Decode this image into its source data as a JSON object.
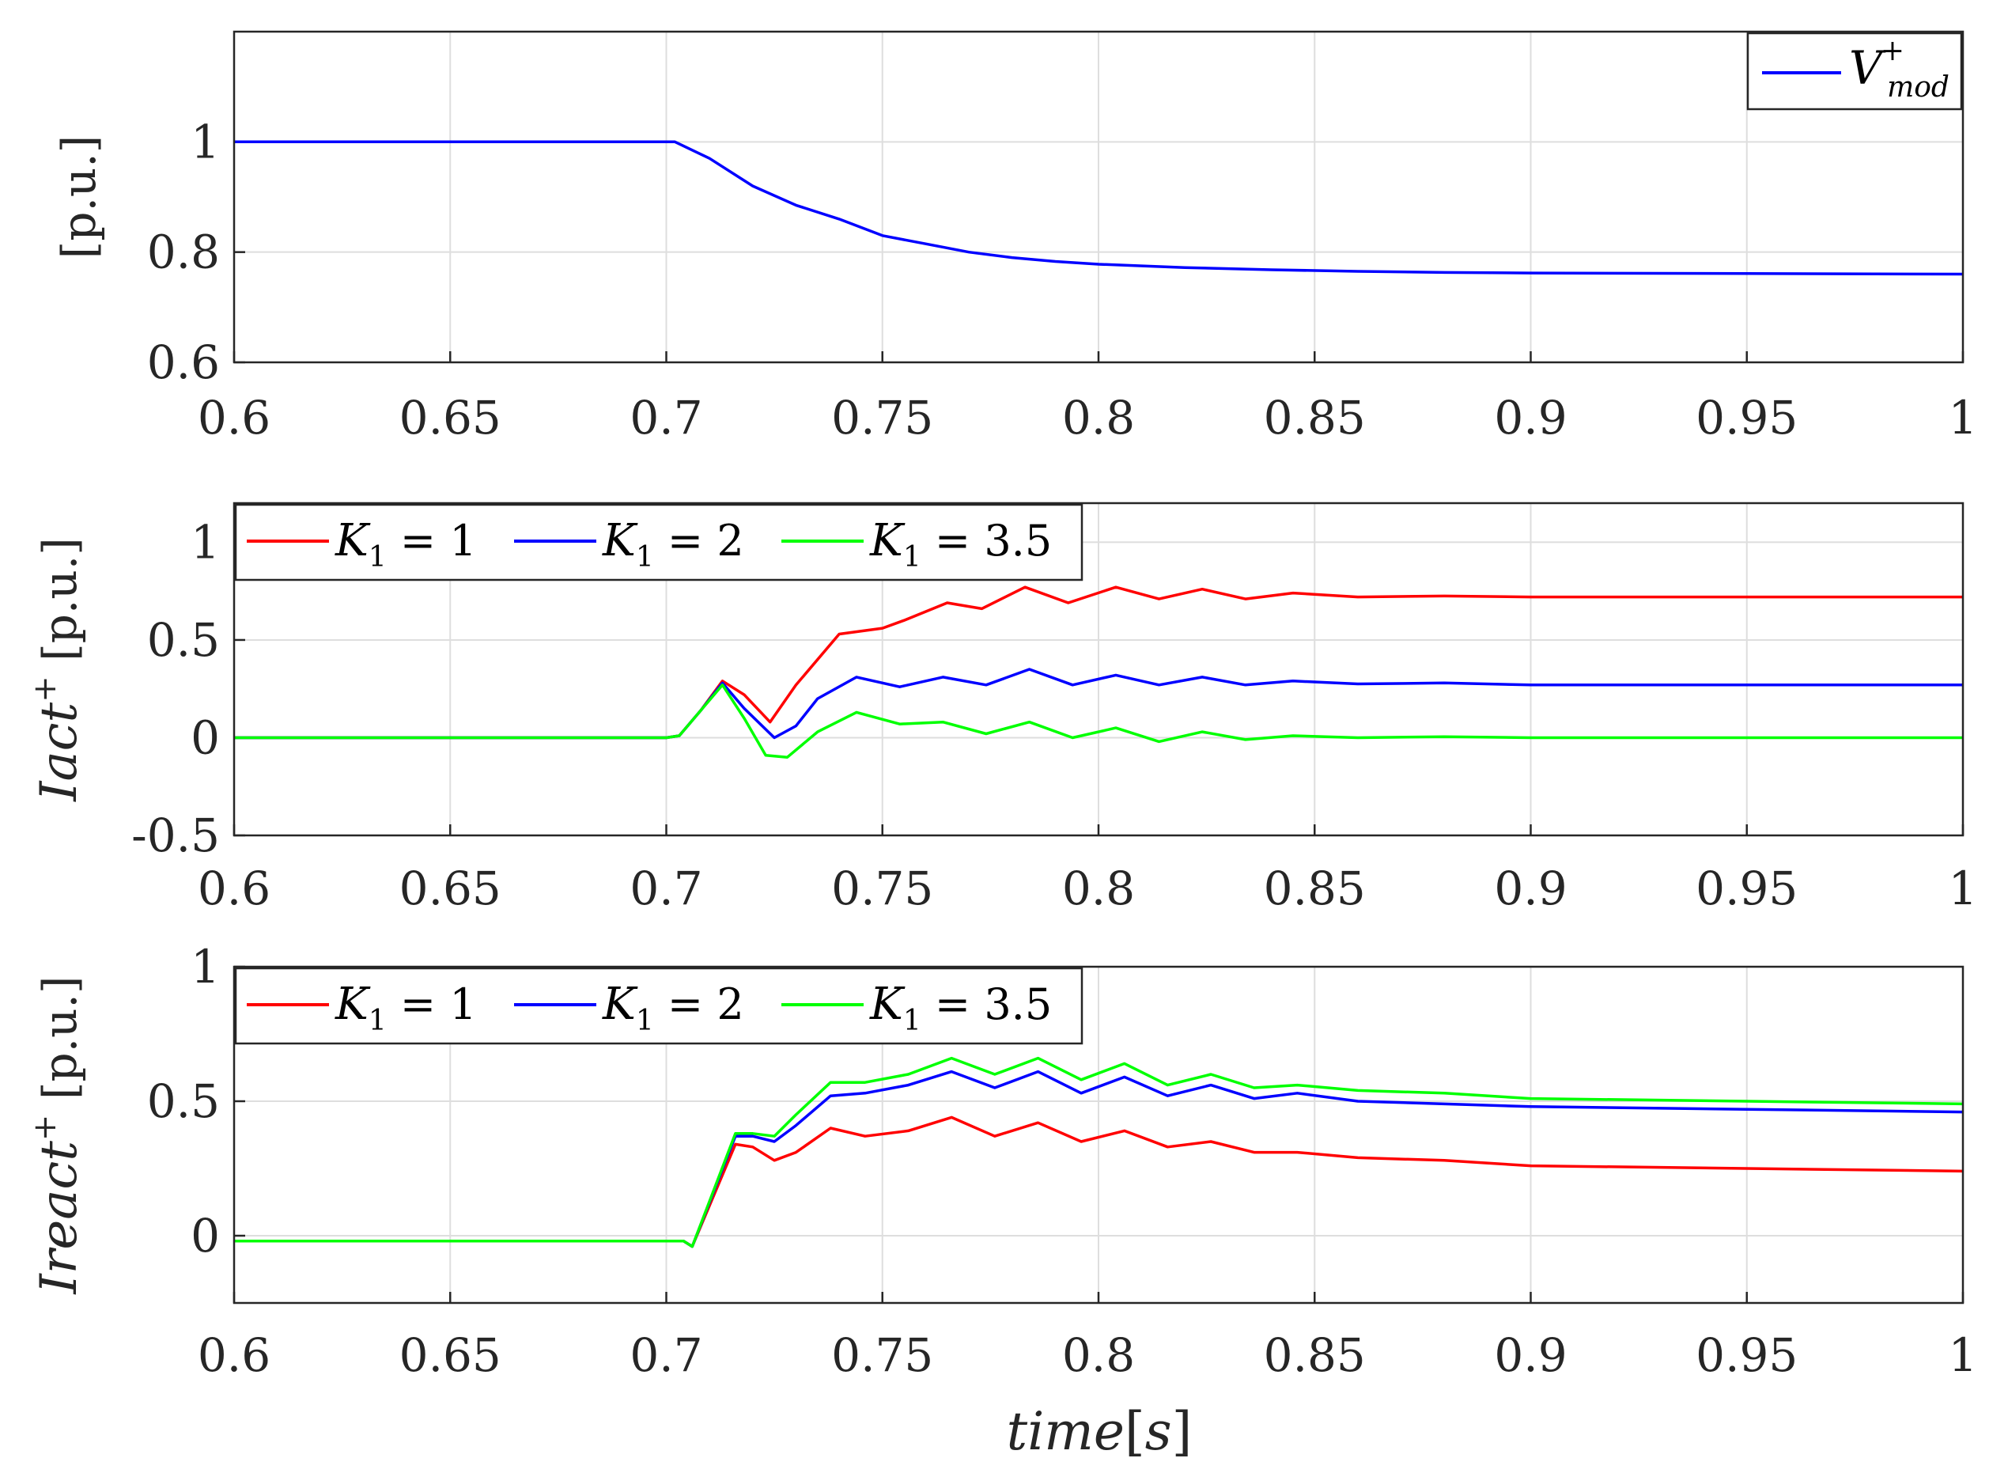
{
  "chart_data": [
    {
      "type": "line",
      "title": "",
      "ylabel": "[p.u.]",
      "xlim": [
        0.6,
        1.0
      ],
      "ylim": [
        0.6,
        1.2
      ],
      "xticks": [
        "0.6",
        "0.65",
        "0.7",
        "0.75",
        "0.8",
        "0.85",
        "0.9",
        "0.95",
        "1"
      ],
      "yticks": [
        [
          "0.6",
          0.6
        ],
        [
          "0.8",
          0.8
        ],
        [
          "1",
          1.0
        ]
      ],
      "grid": true,
      "legend_location": "top-right",
      "legend_text": {
        "symbol": "V",
        "sup": "+",
        "sub": "mod"
      },
      "series": [
        {
          "name": "V+mod",
          "color": "#0000ff",
          "x": [
            0.6,
            0.65,
            0.7,
            0.702,
            0.71,
            0.72,
            0.73,
            0.74,
            0.75,
            0.76,
            0.77,
            0.78,
            0.79,
            0.8,
            0.82,
            0.84,
            0.86,
            0.88,
            0.9,
            0.95,
            1.0
          ],
          "values": [
            1.0,
            1.0,
            1.0,
            1.0,
            0.97,
            0.92,
            0.885,
            0.86,
            0.83,
            0.815,
            0.8,
            0.79,
            0.783,
            0.778,
            0.772,
            0.768,
            0.765,
            0.763,
            0.762,
            0.761,
            0.76
          ]
        }
      ]
    },
    {
      "type": "line",
      "title": "",
      "ylabel": "Iact+ [p.u.]",
      "ylabel_parts": {
        "italic": "Iact",
        "sup": "+",
        "unit": "[p.u.]"
      },
      "xlim": [
        0.6,
        1.0
      ],
      "ylim": [
        -0.5,
        1.2
      ],
      "xticks": [
        "0.6",
        "0.65",
        "0.7",
        "0.75",
        "0.8",
        "0.85",
        "0.9",
        "0.95",
        "1"
      ],
      "yticks": [
        [
          "-0.5",
          -0.5
        ],
        [
          "0",
          0
        ],
        [
          "0.5",
          0.5
        ],
        [
          "1",
          1.0
        ]
      ],
      "grid": true,
      "legend_location": "top-left",
      "series": [
        {
          "name": "K1 = 1",
          "label_sym": "K",
          "label_sub": "1",
          "label_val": " = 1",
          "color": "#ff0000",
          "x": [
            0.6,
            0.65,
            0.7,
            0.703,
            0.708,
            0.713,
            0.718,
            0.724,
            0.73,
            0.74,
            0.75,
            0.755,
            0.765,
            0.773,
            0.783,
            0.793,
            0.804,
            0.814,
            0.824,
            0.834,
            0.845,
            0.86,
            0.88,
            0.9,
            0.95,
            1.0
          ],
          "values": [
            0,
            0,
            0,
            0.01,
            0.14,
            0.29,
            0.22,
            0.08,
            0.27,
            0.53,
            0.56,
            0.6,
            0.69,
            0.66,
            0.77,
            0.69,
            0.77,
            0.71,
            0.76,
            0.71,
            0.74,
            0.72,
            0.725,
            0.72,
            0.72,
            0.72
          ]
        },
        {
          "name": "K1 = 2",
          "label_sym": "K",
          "label_sub": "1",
          "label_val": " = 2",
          "color": "#0000ff",
          "x": [
            0.6,
            0.65,
            0.7,
            0.703,
            0.708,
            0.713,
            0.718,
            0.725,
            0.73,
            0.735,
            0.744,
            0.754,
            0.764,
            0.774,
            0.784,
            0.794,
            0.804,
            0.814,
            0.824,
            0.834,
            0.845,
            0.86,
            0.88,
            0.9,
            0.95,
            1.0
          ],
          "values": [
            0,
            0,
            0,
            0.01,
            0.14,
            0.28,
            0.15,
            0.0,
            0.06,
            0.2,
            0.31,
            0.26,
            0.31,
            0.27,
            0.35,
            0.27,
            0.32,
            0.27,
            0.31,
            0.27,
            0.29,
            0.275,
            0.28,
            0.27,
            0.27,
            0.27
          ]
        },
        {
          "name": "K1 = 3.5",
          "label_sym": "K",
          "label_sub": "1",
          "label_val": " = 3.5",
          "color": "#00ff00",
          "x": [
            0.6,
            0.65,
            0.7,
            0.703,
            0.708,
            0.713,
            0.718,
            0.723,
            0.728,
            0.735,
            0.744,
            0.754,
            0.764,
            0.774,
            0.784,
            0.794,
            0.804,
            0.814,
            0.824,
            0.834,
            0.845,
            0.86,
            0.88,
            0.9,
            0.95,
            1.0
          ],
          "values": [
            0,
            0,
            0,
            0.01,
            0.14,
            0.27,
            0.1,
            -0.09,
            -0.1,
            0.03,
            0.13,
            0.07,
            0.08,
            0.02,
            0.08,
            0.0,
            0.05,
            -0.02,
            0.03,
            -0.01,
            0.01,
            0.0,
            0.005,
            0.0,
            0.0,
            0.0
          ]
        }
      ]
    },
    {
      "type": "line",
      "title": "",
      "xlabel": "time[s]",
      "ylabel": "Ireact+ [p.u.]",
      "ylabel_parts": {
        "italic": "Ireact",
        "sup": "+",
        "unit": "[p.u.]"
      },
      "xlim": [
        0.6,
        1.0
      ],
      "ylim": [
        -0.25,
        1.0
      ],
      "xticks": [
        "0.6",
        "0.65",
        "0.7",
        "0.75",
        "0.8",
        "0.85",
        "0.9",
        "0.95",
        "1"
      ],
      "yticks": [
        [
          "0",
          0
        ],
        [
          "0.5",
          0.5
        ],
        [
          "1",
          1.0
        ]
      ],
      "grid": true,
      "legend_location": "top-left",
      "series": [
        {
          "name": "K1 = 1",
          "label_sym": "K",
          "label_sub": "1",
          "label_val": " = 1",
          "color": "#ff0000",
          "x": [
            0.6,
            0.65,
            0.7,
            0.704,
            0.706,
            0.716,
            0.72,
            0.725,
            0.73,
            0.738,
            0.746,
            0.756,
            0.766,
            0.776,
            0.786,
            0.796,
            0.806,
            0.816,
            0.826,
            0.836,
            0.846,
            0.86,
            0.88,
            0.9,
            0.95,
            1.0
          ],
          "values": [
            -0.02,
            -0.02,
            -0.02,
            -0.02,
            -0.04,
            0.34,
            0.33,
            0.28,
            0.31,
            0.4,
            0.37,
            0.39,
            0.44,
            0.37,
            0.42,
            0.35,
            0.39,
            0.33,
            0.35,
            0.31,
            0.31,
            0.29,
            0.28,
            0.26,
            0.25,
            0.24
          ]
        },
        {
          "name": "K1 = 2",
          "label_sym": "K",
          "label_sub": "1",
          "label_val": " = 2",
          "color": "#0000ff",
          "x": [
            0.6,
            0.65,
            0.7,
            0.704,
            0.706,
            0.716,
            0.72,
            0.725,
            0.73,
            0.738,
            0.746,
            0.756,
            0.766,
            0.776,
            0.786,
            0.796,
            0.806,
            0.816,
            0.826,
            0.836,
            0.846,
            0.86,
            0.88,
            0.9,
            0.95,
            1.0
          ],
          "values": [
            -0.02,
            -0.02,
            -0.02,
            -0.02,
            -0.04,
            0.37,
            0.37,
            0.35,
            0.41,
            0.52,
            0.53,
            0.56,
            0.61,
            0.55,
            0.61,
            0.53,
            0.59,
            0.52,
            0.56,
            0.51,
            0.53,
            0.5,
            0.49,
            0.48,
            0.47,
            0.46
          ]
        },
        {
          "name": "K1 = 3.5",
          "label_sym": "K",
          "label_sub": "1",
          "label_val": " = 3.5",
          "color": "#00ff00",
          "x": [
            0.6,
            0.65,
            0.7,
            0.704,
            0.706,
            0.716,
            0.72,
            0.725,
            0.73,
            0.738,
            0.746,
            0.756,
            0.766,
            0.776,
            0.786,
            0.796,
            0.806,
            0.816,
            0.826,
            0.836,
            0.846,
            0.86,
            0.88,
            0.9,
            0.95,
            1.0
          ],
          "values": [
            -0.02,
            -0.02,
            -0.02,
            -0.02,
            -0.04,
            0.38,
            0.38,
            0.37,
            0.45,
            0.57,
            0.57,
            0.6,
            0.66,
            0.6,
            0.66,
            0.58,
            0.64,
            0.56,
            0.6,
            0.55,
            0.56,
            0.54,
            0.53,
            0.51,
            0.5,
            0.49
          ]
        }
      ]
    }
  ]
}
